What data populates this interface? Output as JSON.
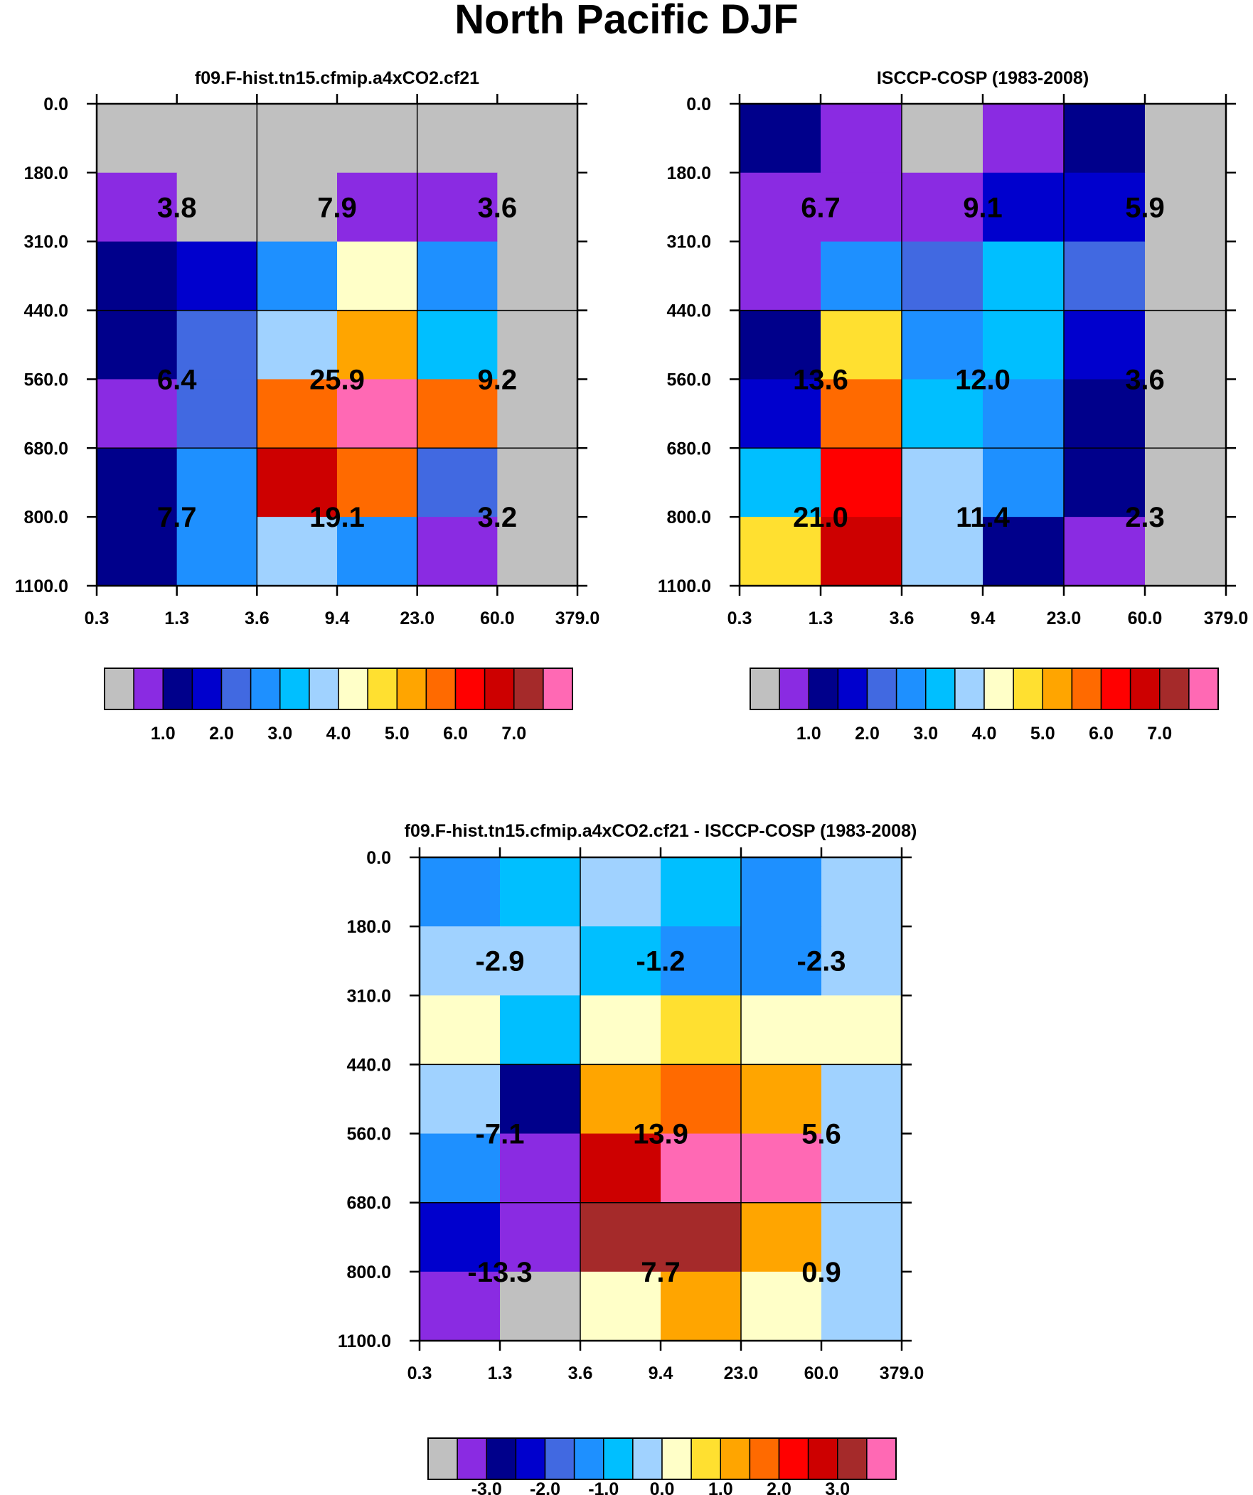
{
  "figure_title": "North Pacific DJF",
  "colors": {
    "palette": [
      "#c0c0c0",
      "#8a2be2",
      "#00008b",
      "#0000cd",
      "#4169e1",
      "#1e90ff",
      "#00bfff",
      "#a0d2ff",
      "#ffffc8",
      "#ffe030",
      "#ffa500",
      "#ff6a00",
      "#ff0000",
      "#cd0000",
      "#a52a2a",
      "#ff69b4"
    ],
    "missing": "#c0c0c0"
  },
  "chart_data": [
    {
      "type": "heatmap",
      "title": "f09.F-hist.tn15.cfmip.a4xCO2.cf21",
      "x_tick_labels": [
        "0.3",
        "1.3",
        "3.6",
        "9.4",
        "23.0",
        "60.0",
        "379.0"
      ],
      "y_tick_labels": [
        "0.0",
        "180.0",
        "310.0",
        "440.0",
        "560.0",
        "680.0",
        "800.0",
        "1100.0"
      ],
      "cell_color_index": [
        [
          0,
          0,
          0,
          0,
          0,
          0
        ],
        [
          1,
          0,
          0,
          1,
          1,
          0
        ],
        [
          2,
          3,
          5,
          8,
          5,
          0
        ],
        [
          2,
          4,
          7,
          10,
          6,
          0
        ],
        [
          1,
          4,
          11,
          15,
          11,
          0
        ],
        [
          2,
          5,
          13,
          11,
          4,
          0
        ],
        [
          2,
          5,
          7,
          5,
          1,
          0
        ]
      ],
      "group_values": [
        [
          "3.8",
          "7.9",
          "3.6"
        ],
        [
          "6.4",
          "25.9",
          "9.2"
        ],
        [
          "7.7",
          "19.1",
          "3.2"
        ]
      ],
      "colorbar_tick_labels": [
        "1.0",
        "2.0",
        "3.0",
        "4.0",
        "5.0",
        "6.0",
        "7.0"
      ]
    },
    {
      "type": "heatmap",
      "title": "ISCCP-COSP (1983-2008)",
      "x_tick_labels": [
        "0.3",
        "1.3",
        "3.6",
        "9.4",
        "23.0",
        "60.0",
        "379.0"
      ],
      "y_tick_labels": [
        "0.0",
        "180.0",
        "310.0",
        "440.0",
        "560.0",
        "680.0",
        "800.0",
        "1100.0"
      ],
      "cell_color_index": [
        [
          2,
          1,
          0,
          1,
          2,
          0
        ],
        [
          1,
          1,
          1,
          3,
          3,
          0
        ],
        [
          1,
          5,
          4,
          6,
          4,
          0
        ],
        [
          2,
          9,
          5,
          6,
          3,
          0
        ],
        [
          3,
          11,
          6,
          5,
          2,
          0
        ],
        [
          6,
          12,
          7,
          5,
          2,
          0
        ],
        [
          9,
          13,
          7,
          2,
          1,
          0
        ]
      ],
      "group_values": [
        [
          "6.7",
          "9.1",
          "5.9"
        ],
        [
          "13.6",
          "12.0",
          "3.6"
        ],
        [
          "21.0",
          "11.4",
          "2.3"
        ]
      ],
      "colorbar_tick_labels": [
        "1.0",
        "2.0",
        "3.0",
        "4.0",
        "5.0",
        "6.0",
        "7.0"
      ]
    },
    {
      "type": "heatmap",
      "title": "f09.F-hist.tn15.cfmip.a4xCO2.cf21 - ISCCP-COSP (1983-2008)",
      "x_tick_labels": [
        "0.3",
        "1.3",
        "3.6",
        "9.4",
        "23.0",
        "60.0",
        "379.0"
      ],
      "y_tick_labels": [
        "0.0",
        "180.0",
        "310.0",
        "440.0",
        "560.0",
        "680.0",
        "800.0",
        "1100.0"
      ],
      "cell_color_index": [
        [
          5,
          6,
          7,
          6,
          5,
          7
        ],
        [
          7,
          7,
          6,
          5,
          5,
          7
        ],
        [
          8,
          6,
          8,
          9,
          8,
          8
        ],
        [
          7,
          2,
          10,
          11,
          10,
          7
        ],
        [
          5,
          1,
          13,
          15,
          15,
          7
        ],
        [
          3,
          1,
          14,
          14,
          10,
          7
        ],
        [
          1,
          0,
          8,
          10,
          8,
          7
        ]
      ],
      "group_values": [
        [
          "-2.9",
          "-1.2",
          "-2.3"
        ],
        [
          "-7.1",
          "13.9",
          "5.6"
        ],
        [
          "-13.3",
          "7.7",
          "0.9"
        ]
      ],
      "colorbar_tick_labels": [
        "-3.0",
        "-2.0",
        "-1.0",
        "0.0",
        "1.0",
        "2.0",
        "3.0"
      ]
    }
  ]
}
